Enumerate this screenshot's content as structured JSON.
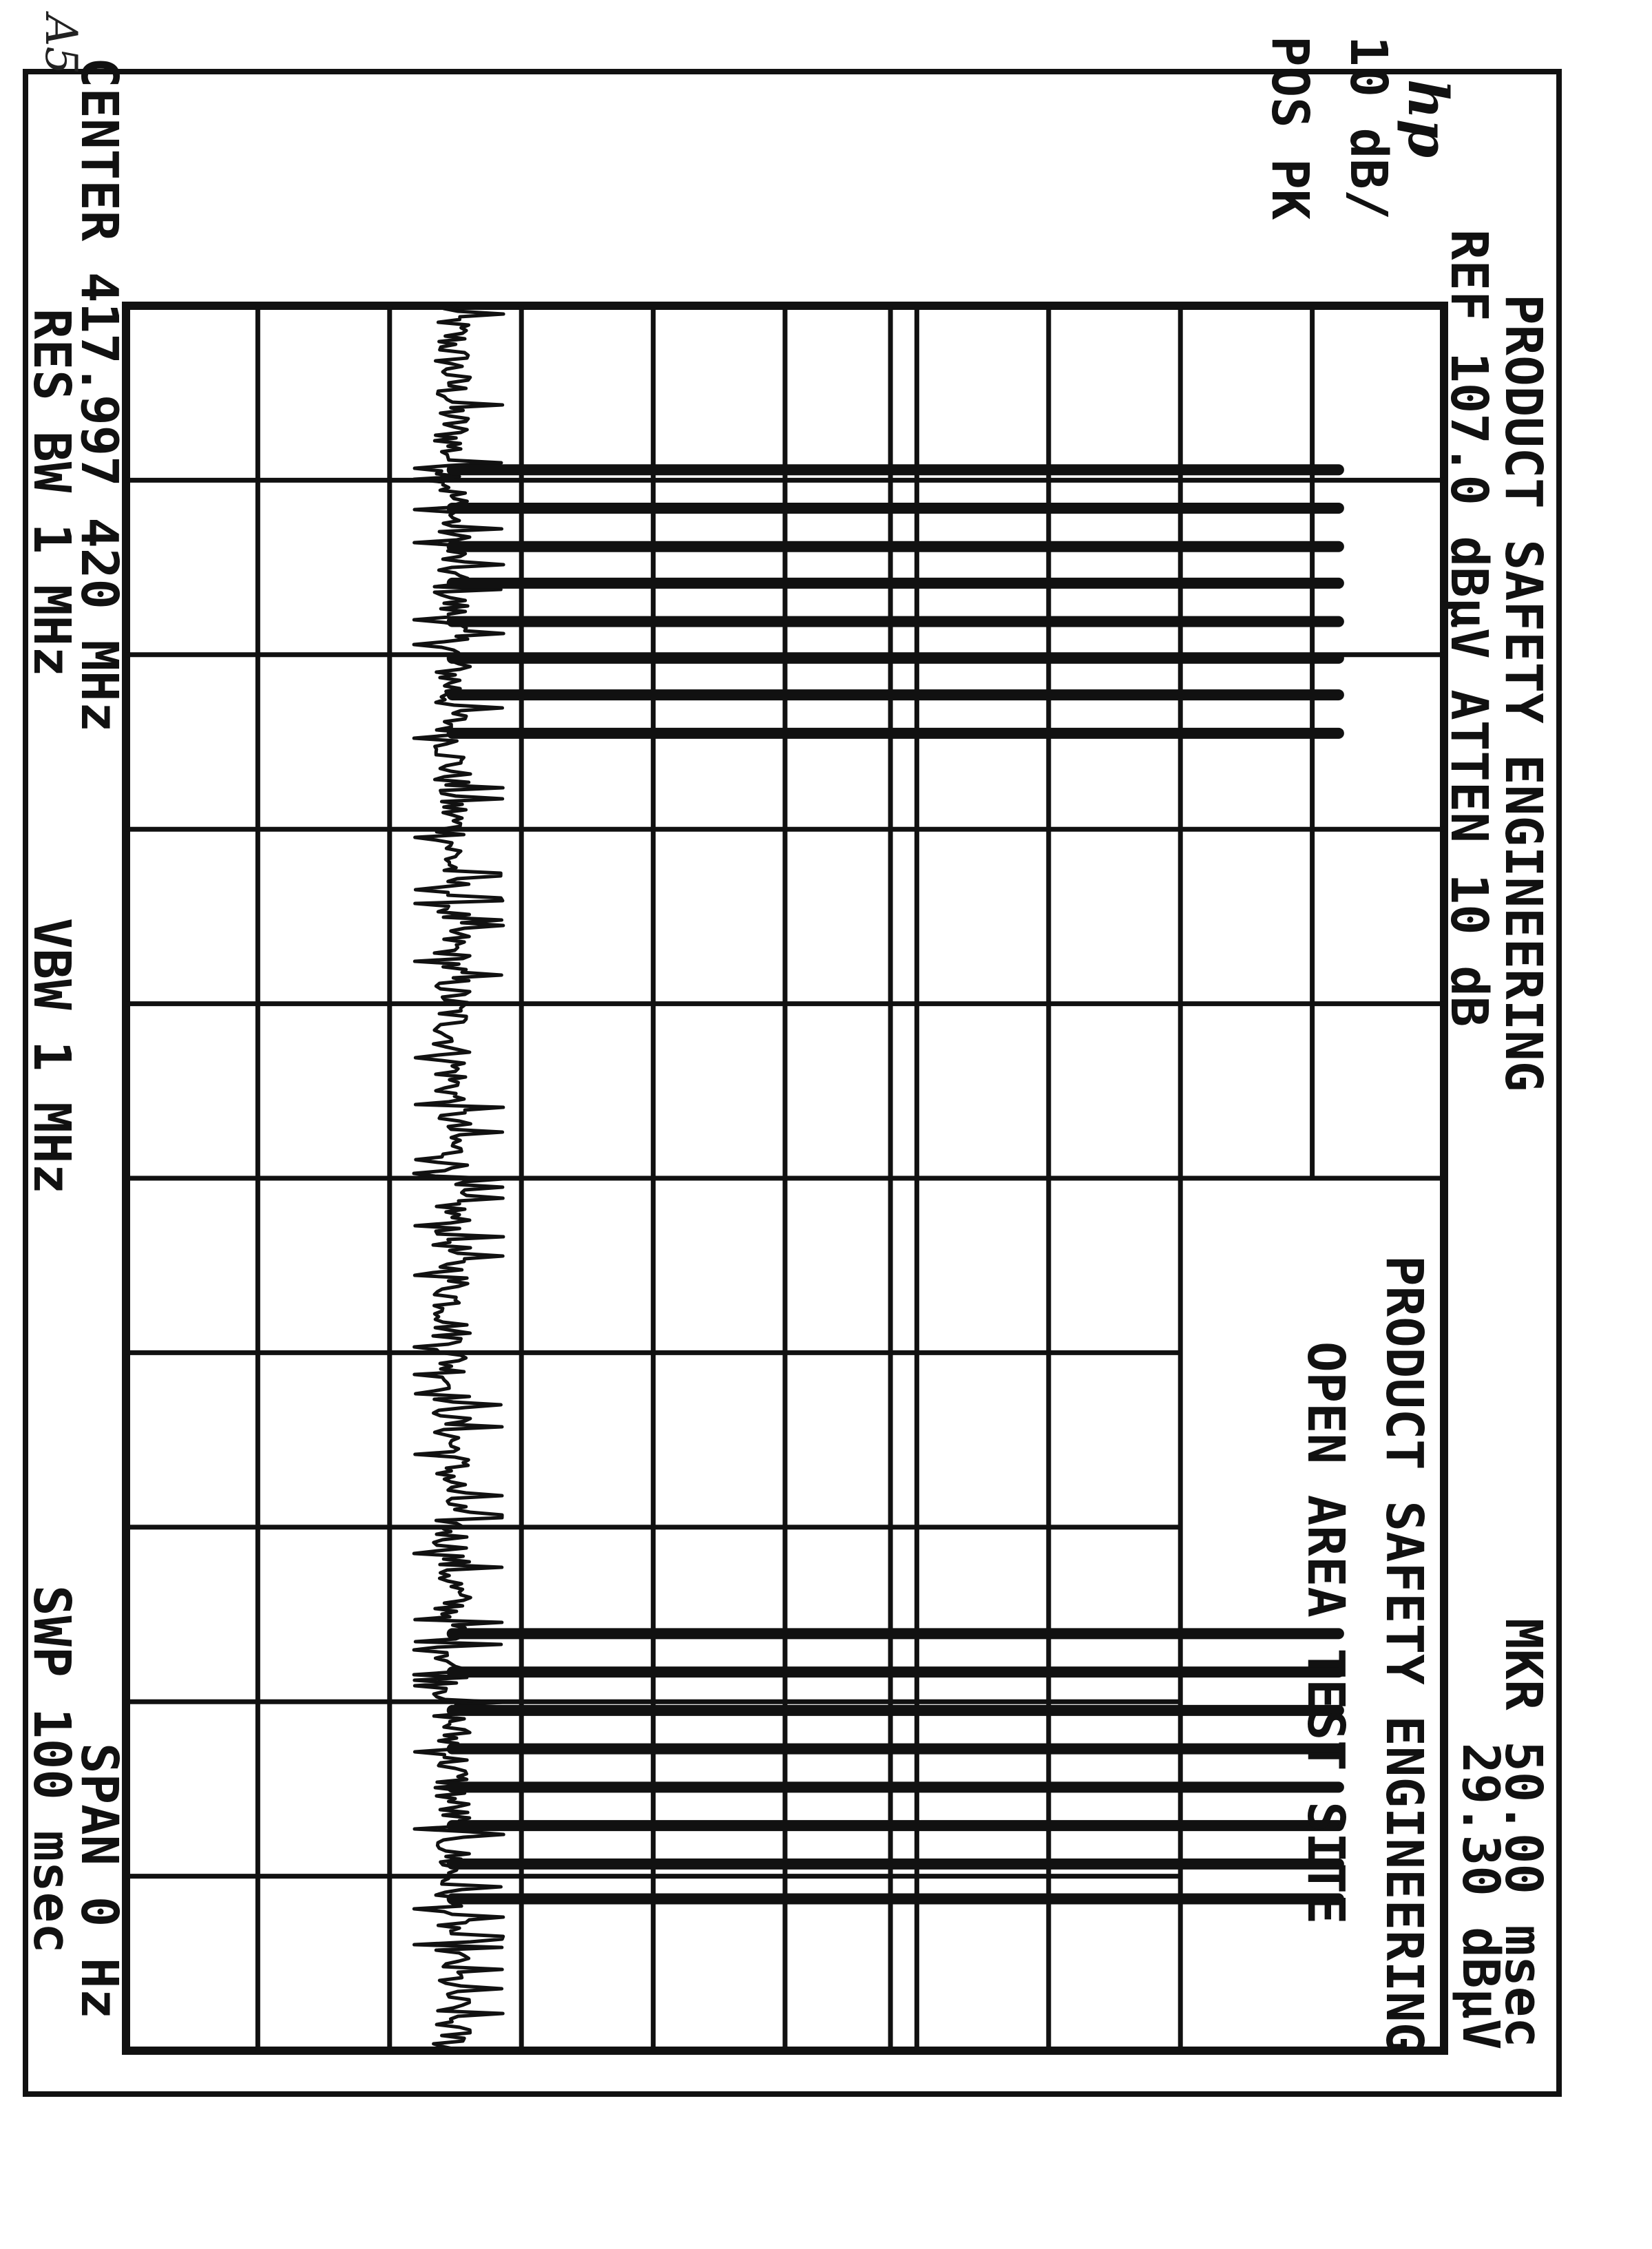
{
  "handwritten_note": "A5",
  "logo": "hp",
  "header": {
    "title": "PRODUCT SAFETY ENGINEERING",
    "ref_line": "REF 107.0 dBµV ATTEN 10 dB",
    "marker_time": "MKR 50.00 msec",
    "marker_level": "29.30 dBµV",
    "scale": "10 dB/",
    "detector": "POS PK"
  },
  "annotation": {
    "line1": "PRODUCT SAFETY ENGINEERING",
    "line2": "OPEN AREA TEST SITE"
  },
  "footer": {
    "center": "CENTER 417.997 420 MHz",
    "res_bw": "RES BW 1 MHz",
    "vbw": "VBW 1 MHz",
    "span": "SPAN 0 Hz",
    "sweep": "SWP 100 msec"
  },
  "colors": {
    "ink": "#111111",
    "paper": "#ffffff"
  },
  "chart_data": {
    "type": "line",
    "title": "",
    "xlabel": "",
    "ylabel": "",
    "x_units": "msec",
    "y_units": "dBµV",
    "xlim": [
      0,
      100
    ],
    "ylim": [
      7,
      107
    ],
    "ref_level_dbuv": 107.0,
    "scale_db_per_div": 10,
    "divisions_x": 10,
    "divisions_y": 10,
    "grid": true,
    "display_line_dbuv": 65,
    "marker": {
      "time_ms": 50.0,
      "level_dbuv": 29.3
    },
    "noise_floor_dbuv": [
      28.5,
      35
    ],
    "pulse_peak_dbuv": 99,
    "pulses_ms": [
      9.4,
      11.6,
      13.8,
      15.9,
      18.1,
      20.2,
      22.3,
      24.5,
      76.1,
      78.3,
      80.5,
      82.7,
      84.9,
      87.1,
      89.3,
      91.3
    ]
  }
}
